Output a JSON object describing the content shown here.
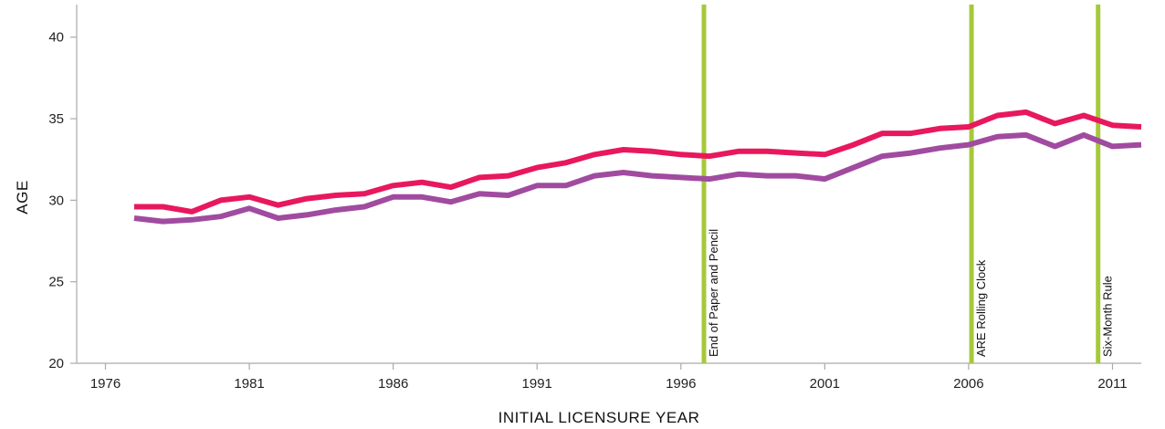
{
  "chart_data": {
    "type": "line",
    "xlabel": "INITIAL LICENSURE YEAR",
    "ylabel": "AGE",
    "xlim": [
      1975,
      2012
    ],
    "ylim": [
      20,
      42
    ],
    "x_ticks": [
      1976,
      1981,
      1986,
      1991,
      1996,
      2001,
      2006,
      2011
    ],
    "y_ticks": [
      20,
      25,
      30,
      35,
      40
    ],
    "grid": false,
    "x": [
      1977,
      1978,
      1979,
      1980,
      1981,
      1982,
      1983,
      1984,
      1985,
      1986,
      1987,
      1988,
      1989,
      1990,
      1991,
      1992,
      1993,
      1994,
      1995,
      1996,
      1997,
      1998,
      1999,
      2000,
      2001,
      2002,
      2003,
      2004,
      2005,
      2006,
      2007,
      2008,
      2009,
      2010,
      2011,
      2012
    ],
    "series": [
      {
        "color": "#e8185d",
        "values": [
          29.6,
          29.6,
          29.3,
          30.0,
          30.2,
          29.7,
          30.1,
          30.3,
          30.4,
          30.9,
          31.1,
          30.8,
          31.4,
          31.5,
          32.0,
          32.3,
          32.8,
          33.1,
          33.0,
          32.8,
          32.7,
          33.0,
          33.0,
          32.9,
          32.8,
          33.4,
          34.1,
          34.1,
          34.4,
          34.5,
          35.2,
          35.4,
          34.7,
          35.2,
          34.6,
          34.5
        ]
      },
      {
        "color": "#a04ba0",
        "values": [
          28.9,
          28.7,
          28.8,
          29.0,
          29.5,
          28.9,
          29.1,
          29.4,
          29.6,
          30.2,
          30.2,
          29.9,
          30.4,
          30.3,
          30.9,
          30.9,
          31.5,
          31.7,
          31.5,
          31.4,
          31.3,
          31.6,
          31.5,
          31.5,
          31.3,
          32.0,
          32.7,
          32.9,
          33.2,
          33.4,
          33.9,
          34.0,
          33.3,
          34.0,
          33.3,
          33.4
        ]
      }
    ],
    "events": [
      {
        "x": 1996.8,
        "label": "End of Paper and Pencil"
      },
      {
        "x": 2006.1,
        "label": "ARE Rolling Clock"
      },
      {
        "x": 2010.5,
        "label": "Six-Month Rule"
      }
    ],
    "event_color": "#a5c93a",
    "axis_color": "#aaaaaa"
  }
}
